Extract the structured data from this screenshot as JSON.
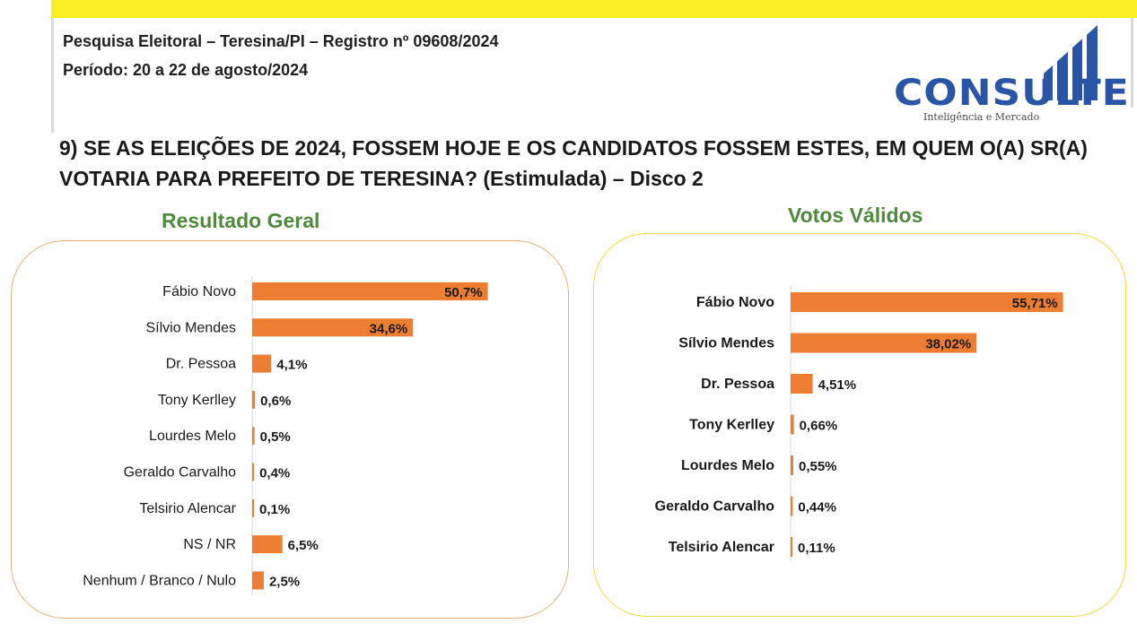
{
  "header": {
    "line1": "Pesquisa Eleitoral – Teresina/PI  – Registro nº 09608/2024",
    "line2": "Período: 20 a 22 de agosto/2024"
  },
  "logo": {
    "word": "CONSULTE",
    "tagline": "Inteligência e Mercado"
  },
  "question": "9) SE AS ELEIÇÕES DE 2024, FOSSEM HOJE E OS CANDIDATOS FOSSEM ESTES, EM QUEM O(A) SR(A) VOTARIA PARA PREFEITO DE TERESINA? (Estimulada) – Disco 2",
  "colors": {
    "bar": "#ed7d31",
    "title_green": "#4f8a3c",
    "top_band": "#fcee21",
    "logo_blue": "#2a55a6"
  },
  "chart_data": [
    {
      "type": "bar",
      "orientation": "horizontal",
      "title": "Resultado Geral",
      "categories": [
        "Fábio Novo",
        "Sílvio Mendes",
        "Dr. Pessoa",
        "Tony Kerlley",
        "Lourdes Melo",
        "Geraldo Carvalho",
        "Telsirio Alencar",
        "NS / NR",
        "Nenhum / Branco / Nulo"
      ],
      "values": [
        50.7,
        34.6,
        4.1,
        0.6,
        0.5,
        0.4,
        0.1,
        6.5,
        2.5
      ],
      "labels": [
        "50,7%",
        "34,6%",
        "4,1%",
        "0,6%",
        "0,5%",
        "0,4%",
        "0,1%",
        "6,5%",
        "2,5%"
      ]
    },
    {
      "type": "bar",
      "orientation": "horizontal",
      "title": "Votos Válidos",
      "categories": [
        "Fábio Novo",
        "Sílvio Mendes",
        "Dr. Pessoa",
        "Tony Kerlley",
        "Lourdes Melo",
        "Geraldo Carvalho",
        "Telsirio Alencar"
      ],
      "values": [
        55.71,
        38.02,
        4.51,
        0.66,
        0.55,
        0.44,
        0.11
      ],
      "labels": [
        "55,71%",
        "38,02%",
        "4,51%",
        "0,66%",
        "0,55%",
        "0,44%",
        "0,11%"
      ]
    }
  ]
}
